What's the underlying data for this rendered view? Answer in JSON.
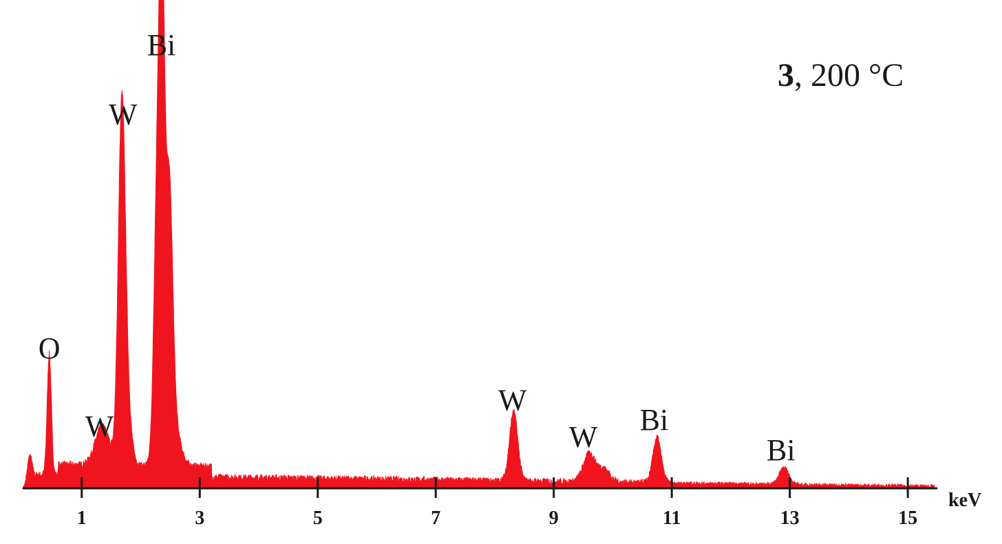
{
  "chart_data": {
    "type": "area",
    "sample_number": "3",
    "sample_condition": ", 200 °C",
    "xlabel": "keV",
    "ylabel": "",
    "xlim": [
      0,
      15.5
    ],
    "ylim": [
      0,
      100
    ],
    "x_ticks": [
      1,
      3,
      5,
      7,
      9,
      11,
      13,
      15
    ],
    "x_tick_labels": [
      "1",
      "3",
      "5",
      "7",
      "9",
      "11",
      "13",
      "15"
    ],
    "grid": false,
    "color": "#f0141e",
    "baseline": 2.5,
    "peaks": [
      {
        "x": 0.12,
        "y": 6,
        "width": 0.04
      },
      {
        "x": 0.45,
        "y": 28,
        "width": 0.035
      },
      {
        "x": 1.35,
        "y": 9,
        "width": 0.12
      },
      {
        "x": 1.68,
        "y": 82,
        "width": 0.06
      },
      {
        "x": 1.78,
        "y": 10,
        "width": 0.07
      },
      {
        "x": 2.28,
        "y": 63,
        "width": 0.055
      },
      {
        "x": 2.36,
        "y": 98,
        "width": 0.045
      },
      {
        "x": 2.48,
        "y": 62,
        "width": 0.06
      },
      {
        "x": 2.58,
        "y": 8,
        "width": 0.1
      },
      {
        "x": 8.32,
        "y": 16,
        "width": 0.07
      },
      {
        "x": 9.6,
        "y": 6.5,
        "width": 0.1
      },
      {
        "x": 9.85,
        "y": 3,
        "width": 0.1
      },
      {
        "x": 10.75,
        "y": 10.5,
        "width": 0.07
      },
      {
        "x": 12.9,
        "y": 4,
        "width": 0.08
      }
    ],
    "annotations": [
      {
        "text": "O",
        "x": 0.45,
        "y": 30
      },
      {
        "text": "W",
        "x": 1.3,
        "y": 12
      },
      {
        "text": "W",
        "x": 1.7,
        "y": 84
      },
      {
        "text": "Bi",
        "x": 2.35,
        "y": 100
      },
      {
        "text": "W",
        "x": 8.3,
        "y": 18
      },
      {
        "text": "W",
        "x": 9.5,
        "y": 9.5
      },
      {
        "text": "Bi",
        "x": 10.7,
        "y": 13.5
      },
      {
        "text": "Bi",
        "x": 12.85,
        "y": 6.5
      }
    ]
  }
}
